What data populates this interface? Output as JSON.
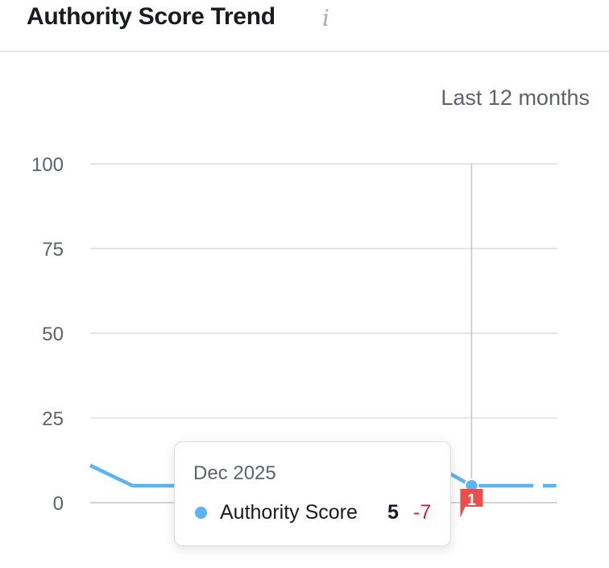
{
  "widget": {
    "title": "Authority Score Trend",
    "info_icon": "info-icon",
    "period": "Last 12 months"
  },
  "chart_data": {
    "type": "line",
    "title": "",
    "xlabel": "",
    "ylabel": "",
    "ylim": [
      0,
      100
    ],
    "yticks": [
      "100",
      "75",
      "50",
      "25",
      "0"
    ],
    "grid": true,
    "series": [
      {
        "name": "Authority Score",
        "color": "#5ab4f5",
        "values": [
          11,
          5,
          5,
          5,
          5,
          5,
          5,
          5,
          12,
          5,
          5,
          5
        ],
        "dashed_from_index": 10
      }
    ],
    "highlight_index": 9,
    "annotation_marker": {
      "index": 9,
      "label": "1",
      "color": "#f04c4c"
    }
  },
  "tooltip": {
    "date": "Dec 2025",
    "series_label": "Authority Score",
    "value": "5",
    "delta": "-7",
    "delta_color": "#d1262f"
  }
}
